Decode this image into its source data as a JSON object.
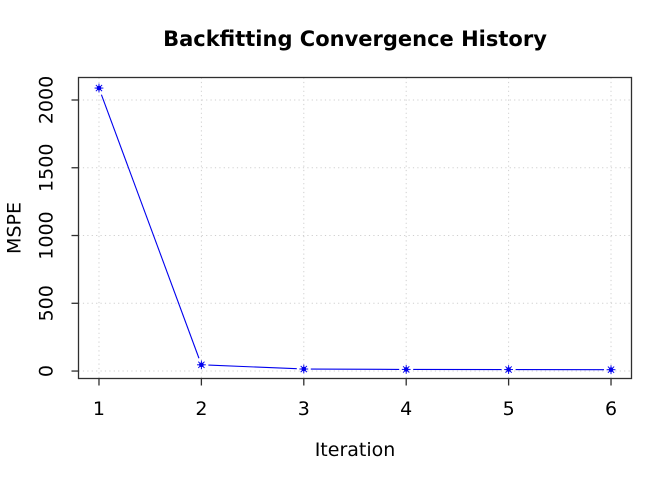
{
  "chart_data": {
    "type": "line",
    "title": "Backfitting Convergence History",
    "xlabel": "Iteration",
    "ylabel": "MSPE",
    "x": [
      1,
      2,
      3,
      4,
      5,
      6
    ],
    "series": [
      {
        "name": "MSPE",
        "values": [
          2088,
          46,
          15,
          12,
          11,
          10
        ]
      }
    ],
    "xticks": [
      1,
      2,
      3,
      4,
      5,
      6
    ],
    "yticks": [
      0,
      500,
      1000,
      1500,
      2000
    ],
    "xlim": [
      0.8,
      6.2
    ],
    "ylim": [
      -55,
      2166
    ],
    "grid": "dotted",
    "legend_position": "none",
    "marker_style": "asterisk-dot",
    "line_type": "points-with-gapped-line",
    "colors": {
      "line": "#0000ee",
      "marker": "#0000ee",
      "grid": "#cfcfcf",
      "box": "#2f2f2f",
      "text": "#000000",
      "background": "#ffffff"
    }
  }
}
